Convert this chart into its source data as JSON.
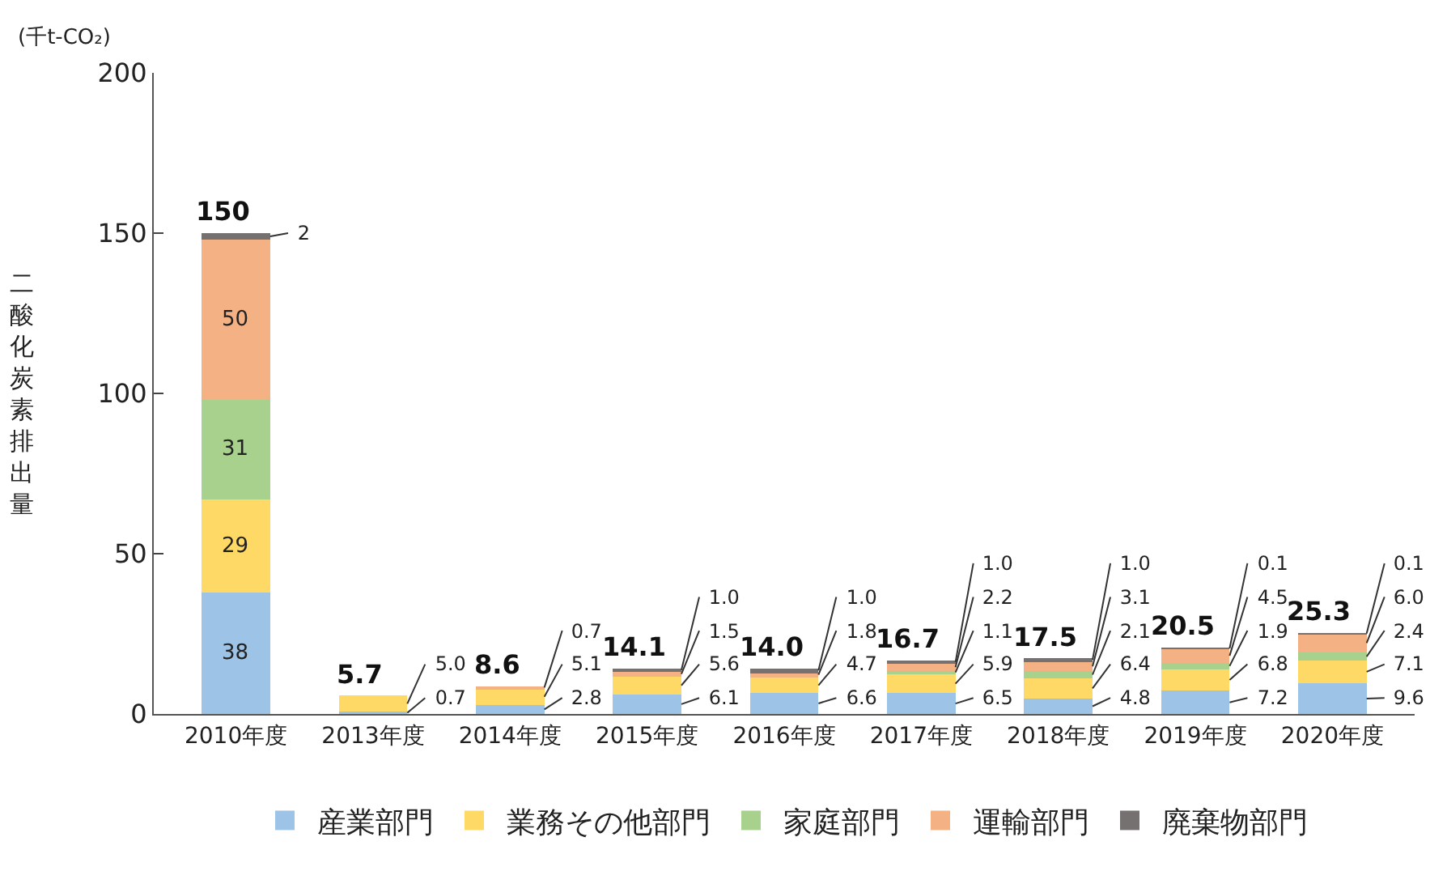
{
  "chart_data": {
    "type": "bar",
    "stacked": true,
    "categories": [
      "2010年度",
      "2013年度",
      "2014年度",
      "2015年度",
      "2016年度",
      "2017年度",
      "2018年度",
      "2019年度",
      "2020年度"
    ],
    "series": [
      {
        "name": "産業部門",
        "color": "#9dc3e6",
        "values": [
          38,
          0.7,
          2.8,
          6.1,
          6.6,
          6.5,
          4.8,
          7.2,
          9.6
        ],
        "value_labels": [
          "38",
          "0.7",
          "2.8",
          "6.1",
          "6.6",
          "6.5",
          "4.8",
          "7.2",
          "9.6"
        ]
      },
      {
        "name": "業務その他部門",
        "color": "#ffd966",
        "values": [
          29,
          5.0,
          5.1,
          5.6,
          4.7,
          5.9,
          6.4,
          6.8,
          7.1
        ],
        "value_labels": [
          "29",
          "5.0",
          "5.1",
          "5.6",
          "4.7",
          "5.9",
          "6.4",
          "6.8",
          "7.1"
        ]
      },
      {
        "name": "家庭部門",
        "color": "#a9d18e",
        "values": [
          31,
          null,
          null,
          null,
          null,
          1.1,
          2.1,
          1.9,
          2.4
        ],
        "value_labels": [
          "31",
          null,
          null,
          null,
          null,
          "1.1",
          "2.1",
          "1.9",
          "2.4"
        ]
      },
      {
        "name": "運輸部門",
        "color": "#f4b183",
        "values": [
          50,
          null,
          0.7,
          1.5,
          1.8,
          2.2,
          3.1,
          4.5,
          6.0
        ],
        "value_labels": [
          "50",
          null,
          "0.7",
          "1.5",
          "1.8",
          "2.2",
          "3.1",
          "4.5",
          "6.0"
        ]
      },
      {
        "name": "廃棄物部門",
        "color": "#767171",
        "values": [
          2,
          null,
          null,
          1.0,
          1.0,
          1.0,
          1.0,
          0.1,
          0.1
        ],
        "value_labels": [
          "2",
          null,
          null,
          "1.0",
          "1.0",
          "1.0",
          "1.0",
          "0.1",
          "0.1"
        ]
      }
    ],
    "totals": [
      "150",
      "5.7",
      "8.6",
      "14.1",
      "14.0",
      "16.7",
      "17.5",
      "20.5",
      "25.3"
    ],
    "ylim": [
      0,
      200
    ],
    "yticks": [
      0,
      50,
      100,
      150,
      200
    ],
    "ylabel": "二酸化炭素排出量",
    "annotations": [
      "(千t-CO₂)"
    ],
    "legend": "bottom"
  }
}
